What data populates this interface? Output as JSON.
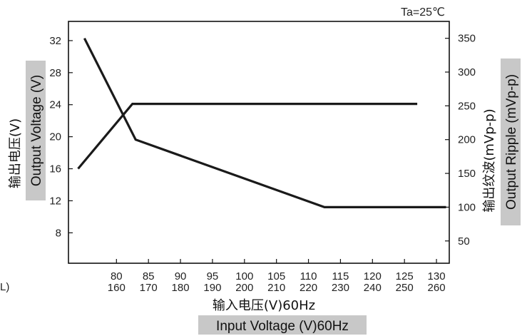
{
  "chart_data": {
    "type": "line",
    "condition": "Ta=25℃",
    "stray_text": "L)",
    "xlabel_cn": "输入电压(V)60Hz",
    "xlabel_en": "Input Voltage (V)60Hz",
    "ylabel_left_cn": "输出电压(V)",
    "ylabel_left_en": "Output Voltage (V)",
    "ylabel_right_cn": "输出纹波(mVp-p)",
    "ylabel_right_en": "Output Ripple (mVp-p)",
    "x_ticks_top": [
      "80",
      "85",
      "90",
      "95",
      "100",
      "105",
      "110",
      "115",
      "120",
      "125",
      "130"
    ],
    "x_ticks_bottom": [
      "160",
      "170",
      "180",
      "190",
      "200",
      "210",
      "220",
      "230",
      "240",
      "250",
      "260"
    ],
    "x_tick_values": [
      80,
      85,
      90,
      95,
      100,
      105,
      110,
      115,
      120,
      125,
      130
    ],
    "xlim": [
      72.5,
      132
    ],
    "y_left_ticks": [
      "32",
      "28",
      "24",
      "20",
      "16",
      "12",
      "8"
    ],
    "y_left_tick_values": [
      32,
      28,
      24,
      20,
      16,
      12,
      8
    ],
    "y_left_lim": [
      4.2,
      34.4
    ],
    "y_right_ticks": [
      "350",
      "300",
      "250",
      "200",
      "150",
      "100",
      "50"
    ],
    "y_right_tick_values": [
      350,
      300,
      250,
      200,
      150,
      100,
      50
    ],
    "y_right_lim": [
      17,
      375
    ],
    "series": [
      {
        "axis": "left",
        "x": [
          74,
          82.5,
          127
        ],
        "y": [
          16.0,
          24.1,
          24.1
        ]
      },
      {
        "axis": "right",
        "x": [
          75,
          83,
          112.5,
          131.5
        ],
        "y": [
          350,
          200,
          100,
          100
        ]
      }
    ]
  }
}
